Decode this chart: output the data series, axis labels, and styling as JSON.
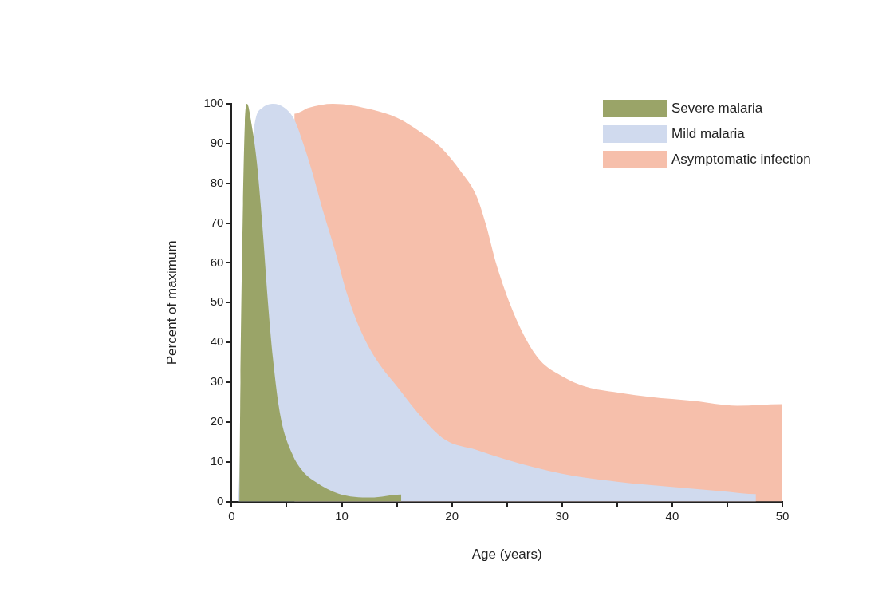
{
  "chart_data": {
    "type": "area",
    "xlabel": "Age (years)",
    "ylabel": "Percent of maximum",
    "legend": "top right",
    "xlim": [
      0,
      50
    ],
    "ylim": [
      0,
      100
    ],
    "xticks": [
      0,
      {
        "value": 5,
        "label": null
      },
      10,
      {
        "value": 15,
        "label": null
      },
      20,
      {
        "value": 25,
        "label": null
      },
      30,
      {
        "value": 35,
        "label": null
      },
      40,
      {
        "value": 45,
        "label": null
      },
      50
    ],
    "yticks": [
      0,
      10,
      20,
      30,
      40,
      50,
      60,
      70,
      80,
      90,
      100
    ],
    "series": [
      {
        "name": "Severe malaria",
        "color": "#9aa468",
        "x": [
          0.7,
          0.8,
          1.0,
          1.2,
          1.4,
          1.8,
          2.3,
          2.8,
          3.3,
          3.75,
          4.4,
          5.5,
          6.5,
          7.6,
          9.7,
          12.6,
          15.4,
          15.4
        ],
        "values": [
          0,
          30,
          70,
          95,
          100,
          95,
          85,
          69,
          50,
          36,
          22,
          12,
          7.5,
          5,
          2,
          1,
          1.8,
          0
        ]
      },
      {
        "name": "Mild malaria",
        "color": "#d0daee",
        "x": [
          0.6,
          2,
          2.8,
          3.8,
          4.8,
          5.7,
          6.5,
          7.3,
          8.3,
          9.4,
          10.5,
          11.8,
          13.3,
          15,
          17,
          19.4,
          22.2,
          25,
          30,
          35,
          40,
          45,
          47.6,
          47.6
        ],
        "values": [
          0,
          93,
          99,
          100,
          99,
          96,
          90,
          83,
          73,
          63,
          52,
          42.5,
          35,
          29,
          22,
          15.5,
          13,
          10.5,
          7,
          5,
          3.7,
          2.5,
          1.9,
          0
        ]
      },
      {
        "name": "Asymptomatic infection",
        "color": "#f6bfab",
        "x": [
          5.7,
          5.7,
          7,
          9.2,
          12.8,
          15,
          17.1,
          19,
          20.8,
          22.2,
          23.1,
          24,
          25.3,
          26.5,
          28,
          30,
          32,
          35.3,
          38,
          42,
          45.9,
          50,
          50
        ],
        "values": [
          0,
          97.5,
          99,
          100,
          98.5,
          96.5,
          93,
          89,
          83,
          77,
          69.5,
          60,
          49.5,
          42,
          35.5,
          31.5,
          29,
          27.3,
          26.3,
          25.3,
          24.1,
          24.5,
          0
        ]
      }
    ]
  }
}
